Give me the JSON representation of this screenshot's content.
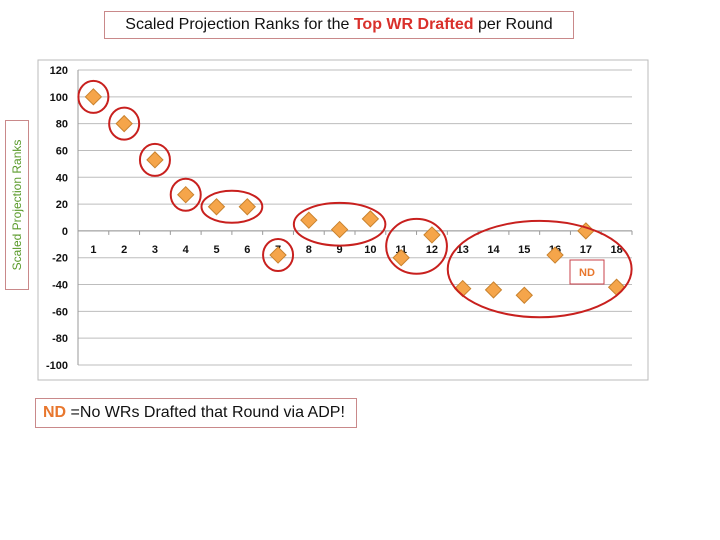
{
  "chart_data": {
    "type": "scatter",
    "title_parts": [
      "Scaled Projection Ranks for the ",
      "Top WR Drafted",
      " per Round"
    ],
    "ylabel": "Scaled Projection Ranks",
    "xlabel": "",
    "x": [
      1,
      2,
      3,
      4,
      5,
      6,
      7,
      8,
      9,
      10,
      11,
      12,
      13,
      14,
      15,
      16,
      17,
      18
    ],
    "y": [
      100,
      80,
      53,
      27,
      18,
      18,
      -18,
      8,
      1,
      9,
      -20,
      -3,
      -43,
      -44,
      -48,
      -18,
      0,
      -42
    ],
    "ylim": [
      -100,
      120
    ],
    "yticks": [
      120,
      100,
      80,
      60,
      40,
      20,
      0,
      -20,
      -40,
      -60,
      -80,
      -100
    ],
    "xticks": [
      "1",
      "2",
      "3",
      "4",
      "5",
      "6",
      "7",
      "8",
      "9",
      "10",
      "11",
      "12",
      "13",
      "14",
      "15",
      "16",
      "17",
      "18"
    ],
    "grid": true,
    "marker": "diamond",
    "marker_color": "#f5a54a",
    "highlight_color": "#c8201e",
    "highlight_groups": [
      [
        1
      ],
      [
        2
      ],
      [
        3
      ],
      [
        4
      ],
      [
        5,
        6
      ],
      [
        7
      ],
      [
        8,
        9,
        10
      ],
      [
        11,
        12
      ],
      [
        13,
        14,
        15,
        16,
        17,
        18
      ]
    ],
    "annotation": "ND"
  },
  "note": {
    "nd": "ND",
    "text": " =No WRs Drafted that Round via ADP!"
  }
}
